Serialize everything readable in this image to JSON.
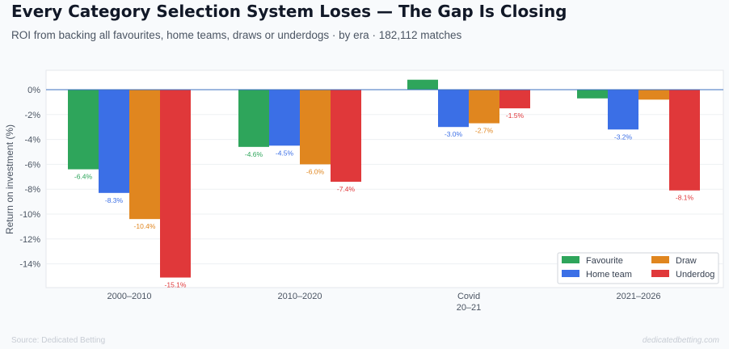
{
  "title": "Every Category Selection System Loses — The Gap Is Closing",
  "subtitle": "ROI from backing all favourites, home teams, draws or underdogs · by era · 182,112 matches",
  "footer": {
    "source": "Source: Dedicated Betting",
    "brand": "dedicatedbetting.com"
  },
  "colors": {
    "Favourite": "#2ea55b",
    "Home team": "#3b6fe6",
    "Draw": "#e0861f",
    "Underdog": "#e0383a"
  },
  "chart_data": {
    "type": "bar",
    "ylabel": "Return on investment (%)",
    "xlabel": "",
    "ylim": [
      -15.9,
      1.5
    ],
    "yticks": [
      0,
      -2,
      -4,
      -6,
      -8,
      -10,
      -12,
      -14
    ],
    "ytick_labels": [
      "0%",
      "-2%",
      "-4%",
      "-6%",
      "-8%",
      "-10%",
      "-12%",
      "-14%"
    ],
    "categories": [
      [
        "2000–2010"
      ],
      [
        "2010–2020"
      ],
      [
        "Covid",
        "20–21"
      ],
      [
        "2021–2026"
      ]
    ],
    "series": [
      {
        "name": "Favourite",
        "values": [
          -6.4,
          -4.6,
          0.8,
          -0.7
        ],
        "labels": [
          "-6.4%",
          "-4.6%",
          "",
          ""
        ]
      },
      {
        "name": "Home team",
        "values": [
          -8.3,
          -4.5,
          -3.0,
          -3.2
        ],
        "labels": [
          "-8.3%",
          "-4.5%",
          "-3.0%",
          "-3.2%"
        ]
      },
      {
        "name": "Draw",
        "values": [
          -10.4,
          -6.0,
          -2.7,
          -0.8
        ],
        "labels": [
          "-10.4%",
          "-6.0%",
          "-2.7%",
          ""
        ]
      },
      {
        "name": "Underdog",
        "values": [
          -15.1,
          -7.4,
          -1.5,
          -8.1
        ],
        "labels": [
          "-15.1%",
          "-7.4%",
          "-1.5%",
          "-8.1%"
        ]
      }
    ],
    "legend": {
      "position": "bottom-right",
      "order": [
        "Favourite",
        "Draw",
        "Home team",
        "Underdog"
      ]
    },
    "grid": true
  }
}
